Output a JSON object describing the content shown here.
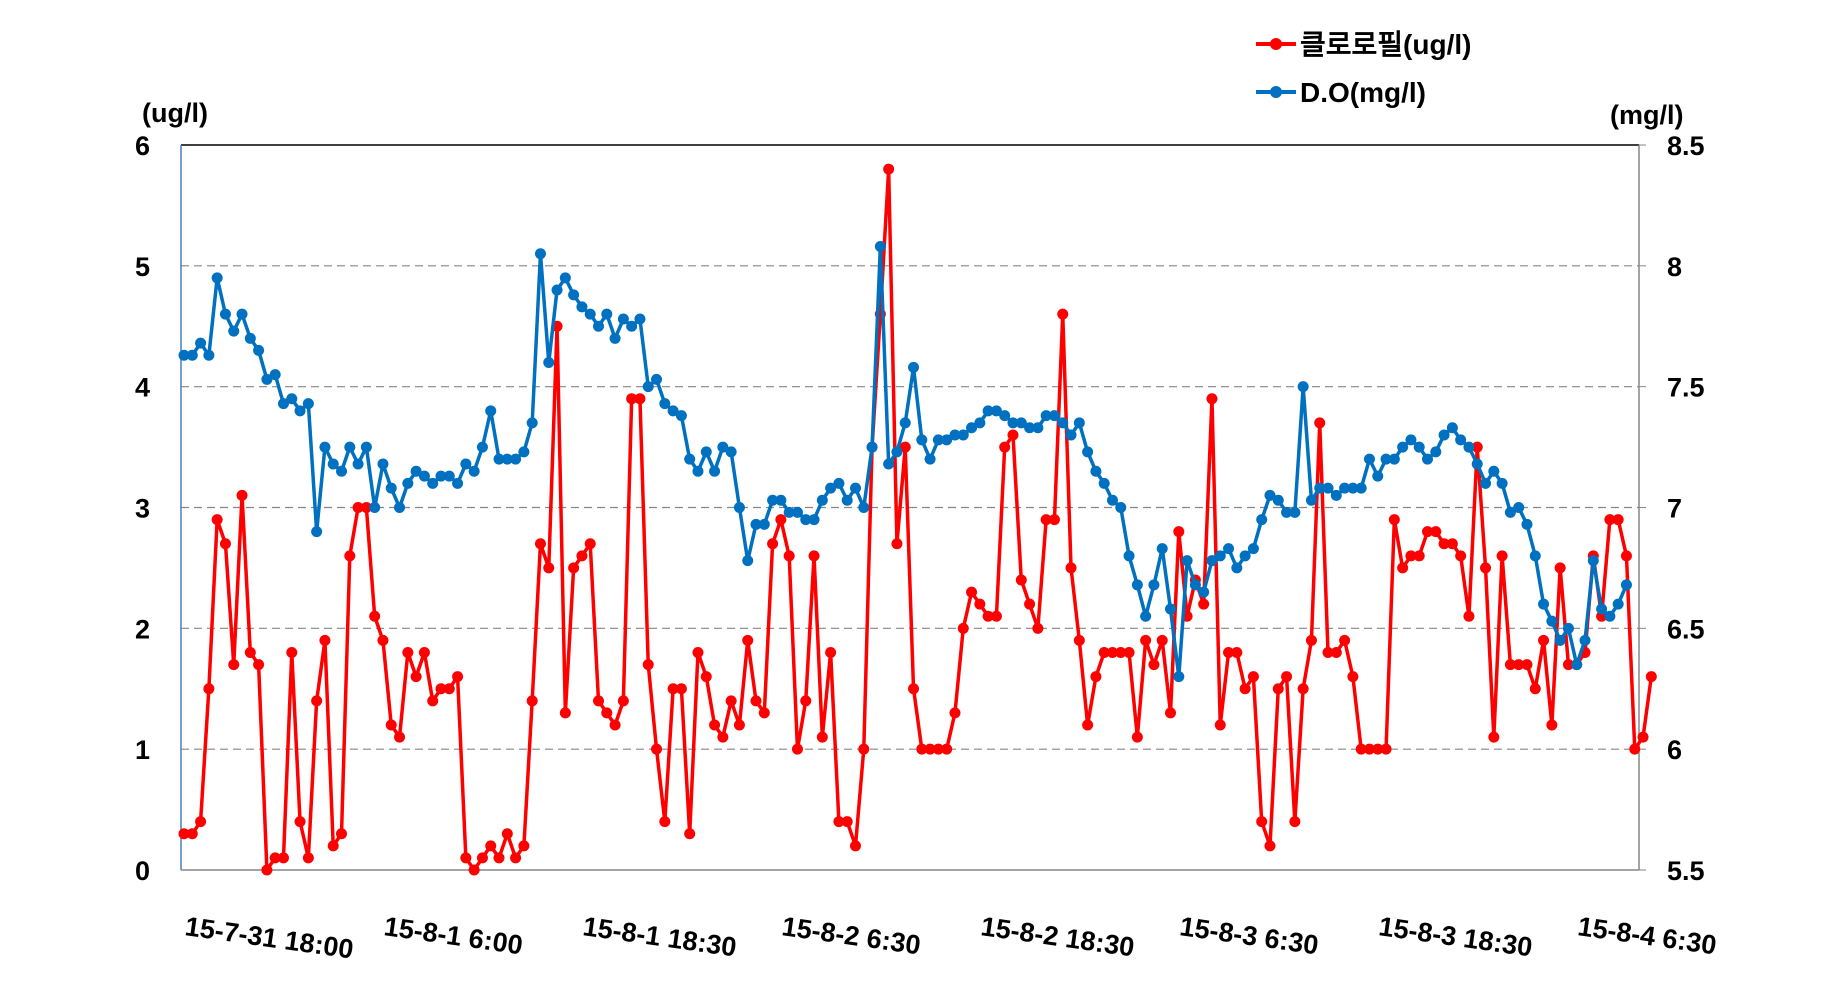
{
  "chart_data": {
    "type": "line",
    "title": "",
    "legend_position": "top-right",
    "grid": true,
    "x_tick_labels": [
      "15-7-31 18:00",
      "15-8-1 6:00",
      "15-8-1 18:30",
      "15-8-2 6:30",
      "15-8-2 18:30",
      "15-8-3 6:30",
      "15-8-3 18:30",
      "15-8-4 6:30"
    ],
    "x_tick_every": 24,
    "left_axis": {
      "unit_label": "(ug/l)",
      "range": [
        0,
        6
      ],
      "ticks": [
        "0",
        "1",
        "2",
        "3",
        "4",
        "5",
        "6"
      ]
    },
    "right_axis": {
      "unit_label": "(mg/l)",
      "range": [
        5.5,
        8.5
      ],
      "ticks": [
        "5.5",
        "6",
        "6.5",
        "7",
        "7.5",
        "8",
        "8.5"
      ]
    },
    "series": [
      {
        "name": "클로로필(ug/l)",
        "axis": "left",
        "color": "#FF0000",
        "values": [
          0.3,
          0.3,
          0.4,
          1.5,
          2.9,
          2.7,
          1.7,
          3.1,
          1.8,
          1.7,
          0,
          0.1,
          0.1,
          1.8,
          0.4,
          0.1,
          1.4,
          1.9,
          0.2,
          0.3,
          2.6,
          3.0,
          3.0,
          2.1,
          1.9,
          1.2,
          1.1,
          1.8,
          1.6,
          1.8,
          1.4,
          1.5,
          1.5,
          1.6,
          0.1,
          0,
          0.1,
          0.2,
          0.1,
          0.3,
          0.1,
          0.2,
          1.4,
          2.7,
          2.5,
          4.5,
          1.3,
          2.5,
          2.6,
          2.7,
          1.4,
          1.3,
          1.2,
          1.4,
          3.9,
          3.9,
          1.7,
          1.0,
          0.4,
          1.5,
          1.5,
          0.3,
          1.8,
          1.6,
          1.2,
          1.1,
          1.4,
          1.2,
          1.9,
          1.4,
          1.3,
          2.7,
          2.9,
          2.6,
          1.0,
          1.4,
          2.6,
          1.1,
          1.8,
          0.4,
          0.4,
          0.2,
          1.0,
          3.5,
          4.6,
          5.8,
          2.7,
          3.5,
          1.5,
          1.0,
          1.0,
          1.0,
          1.0,
          1.3,
          2.0,
          2.3,
          2.2,
          2.1,
          2.1,
          3.5,
          3.6,
          2.4,
          2.2,
          2.0,
          2.9,
          2.9,
          4.6,
          2.5,
          1.9,
          1.2,
          1.6,
          1.8,
          1.8,
          1.8,
          1.8,
          1.1,
          1.9,
          1.7,
          1.9,
          1.3,
          2.8,
          2.1,
          2.4,
          2.2,
          3.9,
          1.2,
          1.8,
          1.8,
          1.5,
          1.6,
          0.4,
          0.2,
          1.5,
          1.6,
          0.4,
          1.5,
          1.9,
          3.7,
          1.8,
          1.8,
          1.9,
          1.6,
          1.0,
          1.0,
          1.0,
          1.0,
          2.9,
          2.5,
          2.6,
          2.6,
          2.8,
          2.8,
          2.7,
          2.7,
          2.6,
          2.1,
          3.5,
          2.5,
          1.1,
          2.6,
          1.7,
          1.7,
          1.7,
          1.5,
          1.9,
          1.2,
          2.5,
          1.7,
          1.7,
          1.8,
          2.6,
          2.1,
          2.9,
          2.9,
          2.6,
          1.0,
          1.1,
          1.6
        ]
      },
      {
        "name": "D.O(mg/l)",
        "axis": "right",
        "color": "#0070C0",
        "values": [
          7.63,
          7.63,
          7.68,
          7.63,
          7.95,
          7.8,
          7.73,
          7.8,
          7.7,
          7.65,
          7.53,
          7.55,
          7.43,
          7.45,
          7.4,
          7.43,
          6.9,
          7.25,
          7.18,
          7.15,
          7.25,
          7.18,
          7.25,
          7.0,
          7.18,
          7.08,
          7.0,
          7.1,
          7.15,
          7.13,
          7.1,
          7.13,
          7.13,
          7.1,
          7.18,
          7.15,
          7.25,
          7.4,
          7.2,
          7.2,
          7.2,
          7.23,
          7.35,
          8.05,
          7.6,
          7.9,
          7.95,
          7.88,
          7.83,
          7.8,
          7.75,
          7.8,
          7.7,
          7.78,
          7.75,
          7.78,
          7.5,
          7.53,
          7.43,
          7.4,
          7.38,
          7.2,
          7.15,
          7.23,
          7.15,
          7.25,
          7.23,
          7.0,
          6.78,
          6.93,
          6.93,
          7.03,
          7.03,
          6.98,
          6.98,
          6.95,
          6.95,
          7.03,
          7.08,
          7.1,
          7.03,
          7.08,
          7.0,
          7.25,
          8.08,
          7.18,
          7.23,
          7.35,
          7.58,
          7.28,
          7.2,
          7.28,
          7.28,
          7.3,
          7.3,
          7.33,
          7.35,
          7.4,
          7.4,
          7.38,
          7.35,
          7.35,
          7.33,
          7.33,
          7.38,
          7.38,
          7.35,
          7.3,
          7.35,
          7.23,
          7.15,
          7.1,
          7.03,
          7.0,
          6.8,
          6.68,
          6.55,
          6.68,
          6.83,
          6.58,
          6.3,
          6.78,
          6.68,
          6.65,
          6.78,
          6.8,
          6.83,
          6.75,
          6.8,
          6.83,
          6.95,
          7.05,
          7.03,
          6.98,
          6.98,
          7.5,
          7.03,
          7.08,
          7.08,
          7.05,
          7.08,
          7.08,
          7.08,
          7.2,
          7.13,
          7.2,
          7.2,
          7.25,
          7.28,
          7.25,
          7.2,
          7.23,
          7.3,
          7.33,
          7.28,
          7.25,
          7.18,
          7.1,
          7.15,
          7.1,
          6.98,
          7.0,
          6.93,
          6.8,
          6.6,
          6.53,
          6.45,
          6.5,
          6.35,
          6.45,
          6.78,
          6.58,
          6.55,
          6.6,
          6.68
        ]
      }
    ]
  }
}
